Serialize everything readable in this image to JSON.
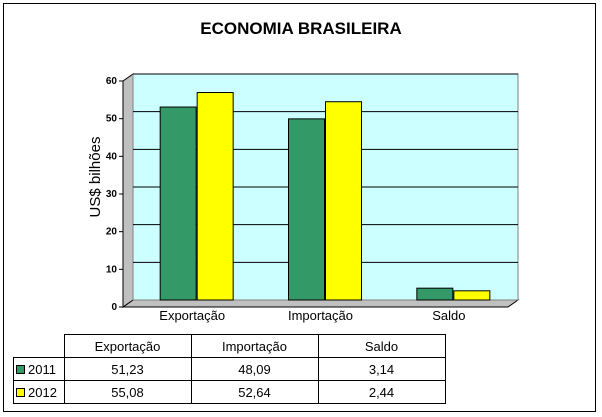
{
  "chart_data": {
    "type": "bar",
    "title": "ECONOMIA BRASILEIRA",
    "ylabel": "US$ bilhões",
    "xlabel": "",
    "ylim": [
      0,
      60
    ],
    "yticks": [
      0,
      10,
      20,
      30,
      40,
      50,
      60
    ],
    "categories": [
      "Exportação",
      "Importação",
      "Saldo"
    ],
    "series": [
      {
        "name": "2011",
        "values": [
          51.23,
          48.09,
          3.14
        ],
        "color": "#339966"
      },
      {
        "name": "2012",
        "values": [
          55.08,
          52.64,
          2.44
        ],
        "color": "#ffff00"
      }
    ],
    "table": {
      "headers": [
        "Exportação",
        "Importação",
        "Saldo"
      ],
      "rows": [
        {
          "label": "2011",
          "cells": [
            "51,23",
            "48,09",
            "3,14"
          ]
        },
        {
          "label": "2012",
          "cells": [
            "55,08",
            "52,64",
            "2,44"
          ]
        }
      ]
    },
    "grid": true,
    "plot_background": "#ccffff"
  }
}
